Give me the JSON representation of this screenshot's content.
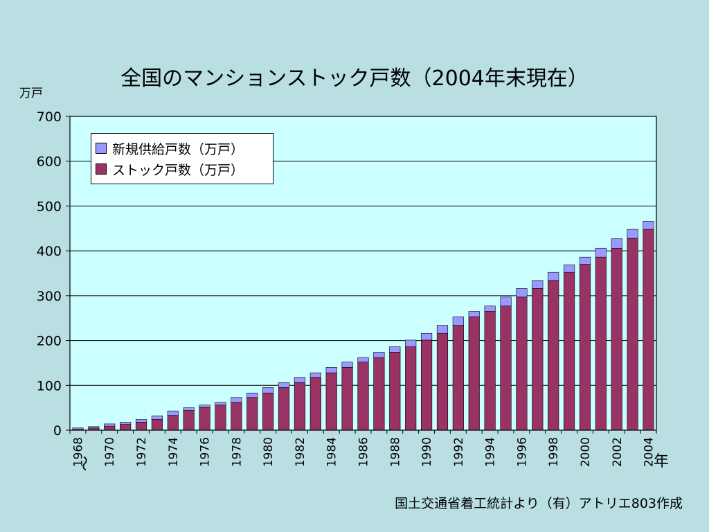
{
  "chart_data": {
    "type": "bar",
    "stacked": true,
    "title": "全国のマンションストック戸数（2004年末現在）",
    "ylabel": "万戸",
    "xlabel": "年",
    "xlabel_note": "〜",
    "source": "国土交通省着工統計より（有）アトリエ803作成",
    "ylim": [
      0,
      700
    ],
    "yticks": [
      0,
      100,
      200,
      300,
      400,
      500,
      600,
      700
    ],
    "grid": true,
    "legend_position": "top-left",
    "categories": [
      "1968",
      "1969",
      "1970",
      "1971",
      "1972",
      "1973",
      "1974",
      "1975",
      "1976",
      "1977",
      "1978",
      "1979",
      "1980",
      "1981",
      "1982",
      "1983",
      "1984",
      "1985",
      "1986",
      "1987",
      "1988",
      "1989",
      "1990",
      "1991",
      "1992",
      "1993",
      "1994",
      "1995",
      "1996",
      "1997",
      "1998",
      "1999",
      "2000",
      "2001",
      "2002",
      "2003",
      "2004"
    ],
    "tick_labels": [
      "1968",
      "",
      "1970",
      "",
      "1972",
      "",
      "1974",
      "",
      "1976",
      "",
      "1978",
      "",
      "1980",
      "",
      "1982",
      "",
      "1984",
      "",
      "1986",
      "",
      "1988",
      "",
      "1990",
      "",
      "1992",
      "",
      "1994",
      "",
      "1996",
      "",
      "1998",
      "",
      "2000",
      "",
      "2002",
      "",
      "2004"
    ],
    "series": [
      {
        "name": "ストック戸数（万戸）",
        "color": "#993366",
        "values": [
          2,
          5,
          9,
          13,
          18,
          24,
          33,
          44,
          51,
          56,
          62,
          73,
          83,
          95,
          106,
          118,
          128,
          140,
          152,
          162,
          174,
          186,
          201,
          216,
          234,
          253,
          265,
          277,
          297,
          316,
          334,
          352,
          370,
          386,
          406,
          428,
          448
        ]
      },
      {
        "name": "新規供給戸数（万戸）",
        "color": "#9999ff",
        "values": [
          3,
          3,
          5,
          5,
          6,
          8,
          10,
          6,
          5,
          6,
          11,
          10,
          12,
          11,
          12,
          10,
          12,
          12,
          10,
          12,
          12,
          15,
          15,
          18,
          19,
          12,
          12,
          20,
          19,
          18,
          18,
          17,
          16,
          20,
          21,
          20,
          18
        ]
      }
    ]
  }
}
